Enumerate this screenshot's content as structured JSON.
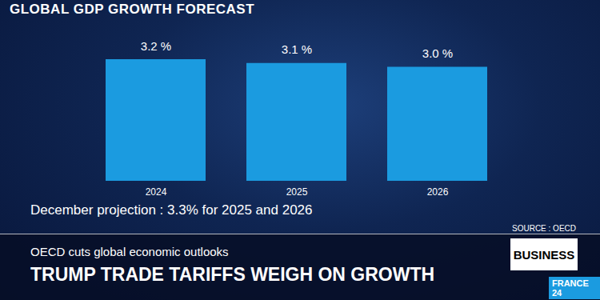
{
  "chart_data": {
    "type": "bar",
    "title": "GLOBAL GDP GROWTH FORECAST",
    "categories": [
      "2024",
      "2025",
      "2026"
    ],
    "values": [
      3.2,
      3.1,
      3.0
    ],
    "value_labels": [
      "3.2 %",
      "3.1 %",
      "3.0 %"
    ],
    "color": "#1b9be0",
    "ylim": [
      0,
      3.2
    ],
    "data_labels": true,
    "tick_labels": "x",
    "annotations": [
      "December projection : 3.3% for 2025 and 2026"
    ]
  },
  "banner": {
    "subtitle": "OECD cuts global economic outlooks",
    "headline": "TRUMP TRADE TARIFFS WEIGH ON GROWTH",
    "source": "SOURCE : OECD",
    "section": "BUSINESS",
    "logo": "FRANCE 24"
  }
}
